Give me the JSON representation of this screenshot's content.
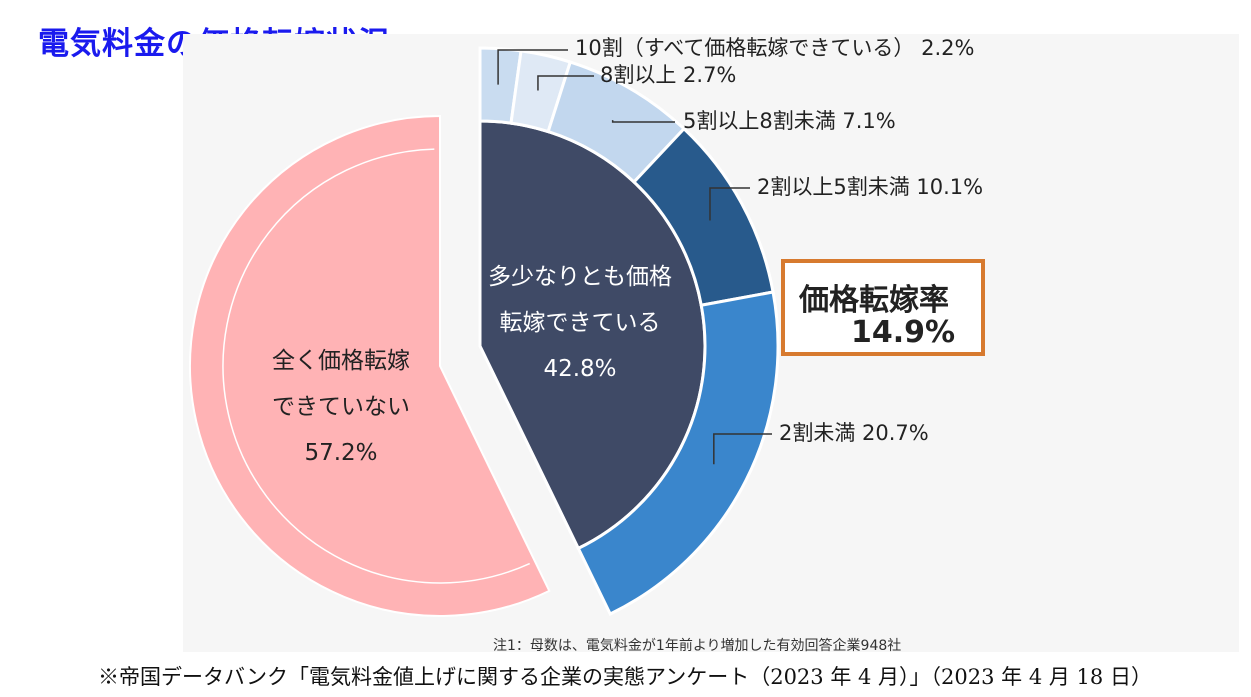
{
  "title": "電気料金の価格転嫁状況",
  "chart_data": {
    "type": "pie",
    "slices": [
      {
        "name": "全く価格転嫁できていない",
        "value": 57.2,
        "color": "#ffb3b5",
        "label_lines": [
          "全く価格転嫁",
          "できていない",
          "57.2%"
        ]
      },
      {
        "name": "多少なりとも価格転嫁できている",
        "value": 42.8,
        "color": "#3f4a66",
        "label_lines": [
          "多少なりとも価格",
          "転嫁できている",
          "42.8%"
        ]
      }
    ],
    "breakdown": [
      {
        "name": "2割未満",
        "value": 20.7,
        "label": "2割未満 20.7%",
        "color": "#3a86cc"
      },
      {
        "name": "2割以上5割未満",
        "value": 10.1,
        "label": "2割以上5割未満 10.1%",
        "color": "#285a8c"
      },
      {
        "name": "5割以上8割未満",
        "value": 7.1,
        "label": "5割以上8割未満 7.1%",
        "color": "#c2d7ee"
      },
      {
        "name": "8割以上",
        "value": 2.7,
        "label": "8割以上 2.7%",
        "color": "#dfe9f5"
      },
      {
        "name": "10割（すべて価格転嫁できている）",
        "value": 2.2,
        "label": "10割（すべて価格転嫁できている） 2.2%",
        "color": "#c9dcf0"
      }
    ]
  },
  "rate_box": {
    "label": "価格転嫁率",
    "value": "14.9%"
  },
  "note": "注1：母数は、電気料金が1年前より増加した有効回答企業948社",
  "source": "※帝国データバンク「電気料金値上げに関する企業の実態アンケート（2023 年 4 月）」（2023 年 4 月 18 日）"
}
